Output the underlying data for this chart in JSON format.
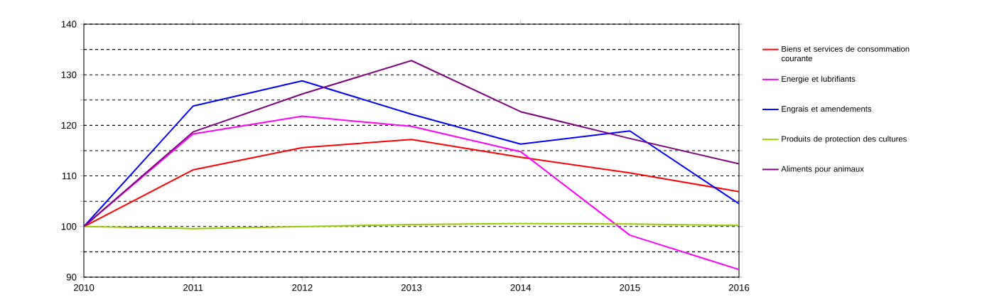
{
  "chart_data": {
    "type": "line",
    "x": [
      2010,
      2011,
      2012,
      2013,
      2014,
      2015,
      2016
    ],
    "series": [
      {
        "name": "Biens et services de consommation courante",
        "color": "#ff0000",
        "values": [
          100,
          111.2,
          115.6,
          117.2,
          113.7,
          110.6,
          106.9
        ]
      },
      {
        "name": "Energie et lubrifiants",
        "color": "#ff00ff",
        "values": [
          100,
          118.3,
          121.8,
          119.8,
          114.8,
          98.3,
          91.5
        ]
      },
      {
        "name": "Engrais et amendements",
        "color": "#0000ff",
        "values": [
          100,
          123.8,
          128.8,
          122.2,
          116.3,
          118.9,
          104.5
        ]
      },
      {
        "name": "Produits de protection des cultures",
        "color": "#99cc00",
        "values": [
          100,
          99.6,
          100,
          100.4,
          100.6,
          100.5,
          100.2
        ]
      },
      {
        "name": "Aliments pour animaux",
        "color": "#800080",
        "values": [
          100,
          118.7,
          126.2,
          132.8,
          122.7,
          117.4,
          112.4
        ]
      }
    ],
    "xlim": [
      2010,
      2016
    ],
    "xticks": [
      2010,
      2011,
      2012,
      2013,
      2014,
      2015,
      2016
    ],
    "ylim": [
      90,
      140
    ],
    "yticks": [
      90,
      {
        "value": 95,
        "label": null
      },
      100,
      {
        "value": 105,
        "label": null
      },
      110,
      {
        "value": 115,
        "label": null
      },
      120,
      {
        "value": 125,
        "label": null
      },
      130,
      {
        "value": 135,
        "label": null
      },
      140
    ],
    "grid": "y",
    "legend": "right",
    "marker": "none",
    "line_style": "solid"
  }
}
